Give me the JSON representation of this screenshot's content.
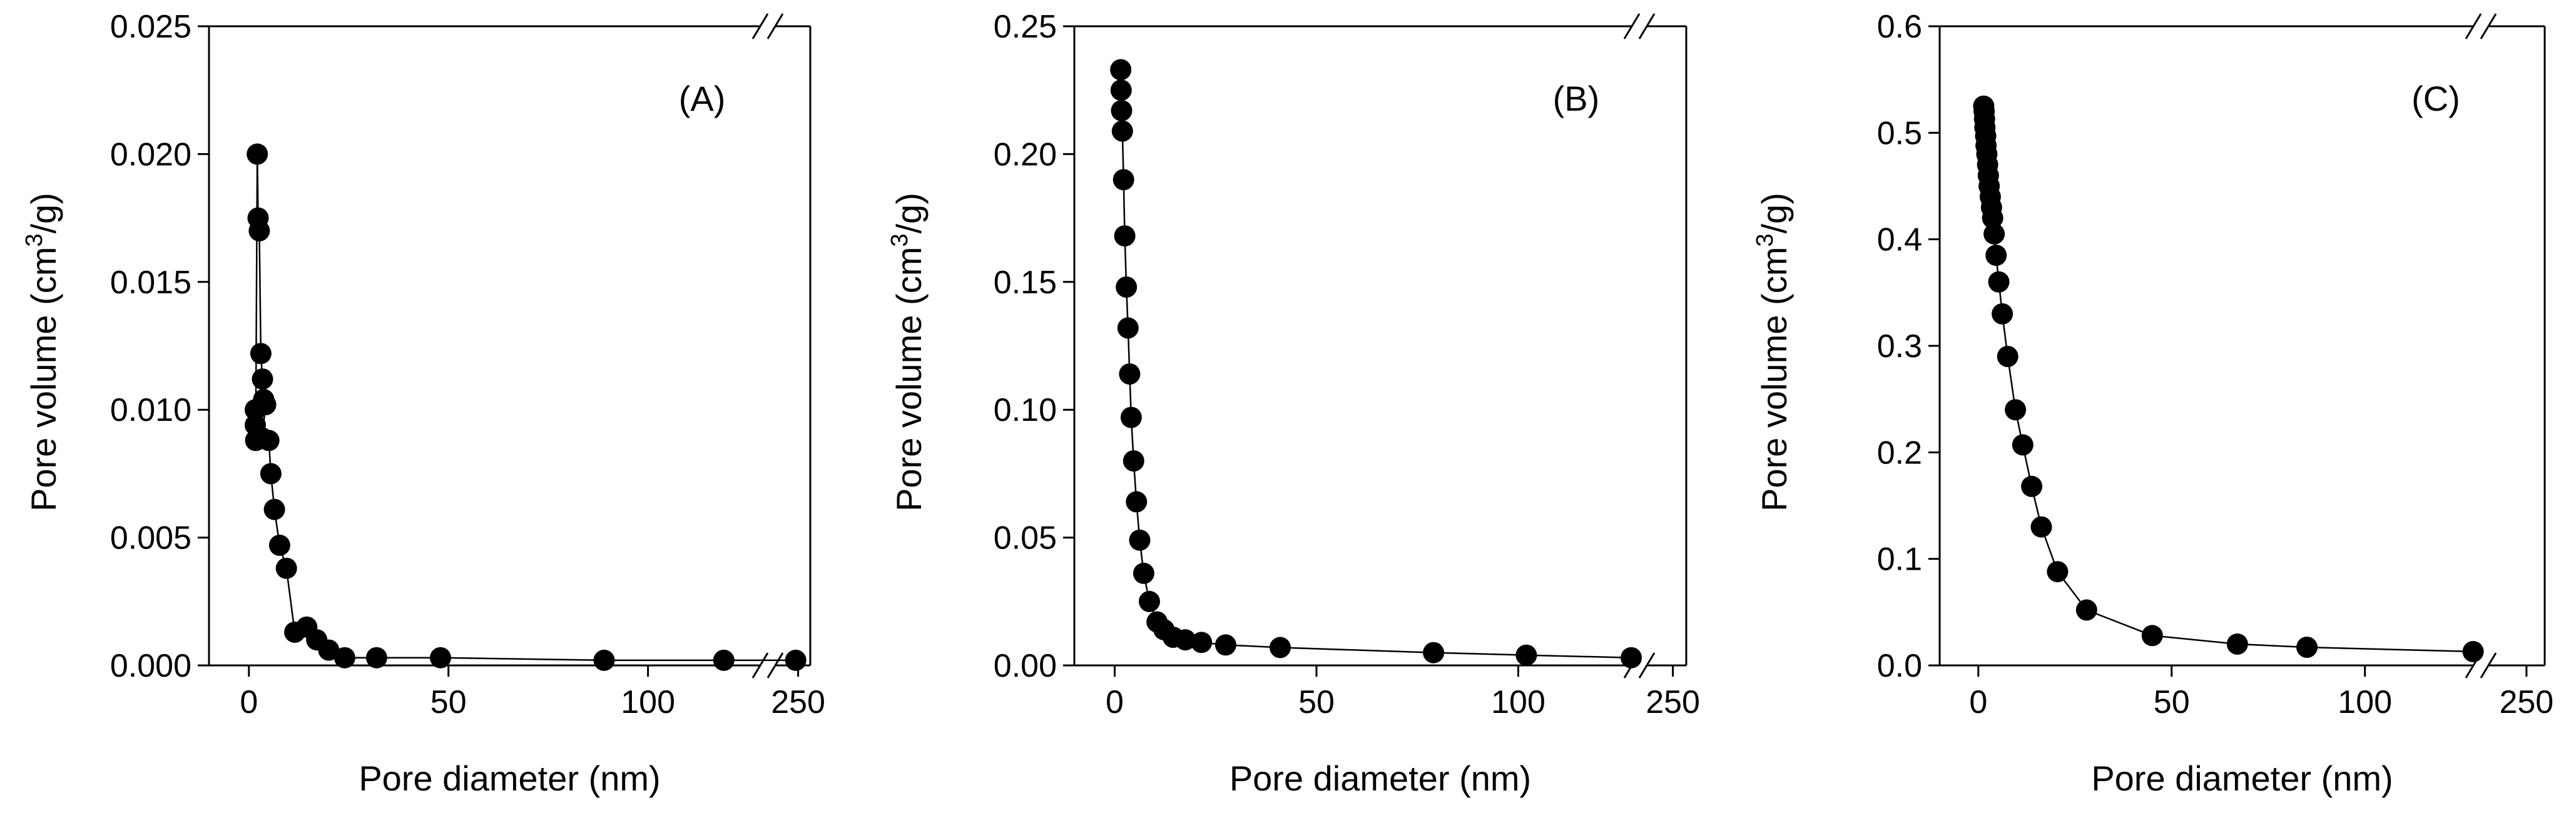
{
  "figure": {
    "colors": {
      "background": "#ffffff",
      "ink": "#000000"
    }
  },
  "chart_data": [
    {
      "type": "line",
      "id": "A",
      "panel_label": "(A)",
      "xlabel": "Pore diameter (nm)",
      "ylabel_main": "Pore volume (cm",
      "ylabel_sup": "3",
      "ylabel_tail": "/g)",
      "ylim": [
        0,
        0.025
      ],
      "yticks": [
        0,
        0.005,
        0.01,
        0.015,
        0.02,
        0.025
      ],
      "ytick_labels": [
        "0.000",
        "0.005",
        "0.010",
        "0.015",
        "0.020",
        "0.025"
      ],
      "xlim_lower": [
        -10,
        130
      ],
      "xticks_lower": [
        0,
        50,
        100
      ],
      "xtick_labels_lower": [
        "0",
        "50",
        "100"
      ],
      "xlim_upper": [
        225,
        260
      ],
      "xticks_upper": [
        250
      ],
      "xtick_labels_upper": [
        "250"
      ],
      "grid": false,
      "marker": "filled-circle",
      "series": [
        {
          "name": "(A)",
          "points": [
            [
              1.6,
              0.01
            ],
            [
              1.6,
              0.0094
            ],
            [
              1.7,
              0.0088
            ],
            [
              2.1,
              0.02
            ],
            [
              2.3,
              0.0175
            ],
            [
              2.6,
              0.017
            ],
            [
              3.0,
              0.0122
            ],
            [
              3.4,
              0.0112
            ],
            [
              3.7,
              0.0104
            ],
            [
              4.2,
              0.0102
            ],
            [
              3.3,
              0.0089
            ],
            [
              5.0,
              0.0088
            ],
            [
              5.5,
              0.0075
            ],
            [
              6.4,
              0.0061
            ],
            [
              7.7,
              0.0047
            ],
            [
              9.4,
              0.0038
            ],
            [
              11.5,
              0.0013
            ],
            [
              14.5,
              0.0015
            ],
            [
              17.0,
              0.001
            ],
            [
              20.0,
              0.0006
            ],
            [
              24.0,
              0.0003
            ],
            [
              32.0,
              0.0003
            ],
            [
              48.0,
              0.0003
            ],
            [
              89.0,
              0.0002
            ],
            [
              119.0,
              0.0002
            ],
            [
              248.0,
              0.0002
            ]
          ]
        }
      ]
    },
    {
      "type": "line",
      "id": "B",
      "panel_label": "(B)",
      "xlabel": "Pore diameter (nm)",
      "ylabel_main": "Pore volume (cm",
      "ylabel_sup": "3",
      "ylabel_tail": "/g)",
      "ylim": [
        0,
        0.25
      ],
      "yticks": [
        0,
        0.05,
        0.1,
        0.15,
        0.2,
        0.25
      ],
      "ytick_labels": [
        "0.00",
        "0.05",
        "0.10",
        "0.15",
        "0.20",
        "0.25"
      ],
      "xlim_lower": [
        -10,
        130
      ],
      "xticks_lower": [
        0,
        50,
        100
      ],
      "xtick_labels_lower": [
        "0",
        "50",
        "100"
      ],
      "xlim_upper": [
        225,
        260
      ],
      "xticks_upper": [
        250
      ],
      "xtick_labels_upper": [
        "250"
      ],
      "grid": false,
      "marker": "filled-circle",
      "series": [
        {
          "name": "(B)",
          "points": [
            [
              1.5,
              0.233
            ],
            [
              1.6,
              0.225
            ],
            [
              1.7,
              0.217
            ],
            [
              1.9,
              0.209
            ],
            [
              2.2,
              0.19
            ],
            [
              2.5,
              0.168
            ],
            [
              2.9,
              0.148
            ],
            [
              3.3,
              0.132
            ],
            [
              3.7,
              0.114
            ],
            [
              4.1,
              0.097
            ],
            [
              4.7,
              0.08
            ],
            [
              5.4,
              0.064
            ],
            [
              6.2,
              0.049
            ],
            [
              7.2,
              0.036
            ],
            [
              8.6,
              0.025
            ],
            [
              10.5,
              0.017
            ],
            [
              12.2,
              0.014
            ],
            [
              14.5,
              0.011
            ],
            [
              17.5,
              0.01
            ],
            [
              21.5,
              0.009
            ],
            [
              27.5,
              0.008
            ],
            [
              41.0,
              0.007
            ],
            [
              79.0,
              0.005
            ],
            [
              102.0,
              0.004
            ],
            [
              128.0,
              0.003
            ]
          ]
        }
      ]
    },
    {
      "type": "line",
      "id": "C",
      "panel_label": "(C)",
      "xlabel": "Pore diameter (nm)",
      "ylabel_main": "Pore volume (cm",
      "ylabel_sup": "3",
      "ylabel_tail": "/g)",
      "ylim": [
        0,
        0.6
      ],
      "yticks": [
        0,
        0.1,
        0.2,
        0.3,
        0.4,
        0.5,
        0.6
      ],
      "ytick_labels": [
        "0.0",
        "0.1",
        "0.2",
        "0.3",
        "0.4",
        "0.5",
        "0.6"
      ],
      "xlim_lower": [
        -10,
        130
      ],
      "xticks_lower": [
        0,
        50,
        100
      ],
      "xtick_labels_lower": [
        "0",
        "50",
        "100"
      ],
      "xlim_upper": [
        225,
        260
      ],
      "xticks_upper": [
        250
      ],
      "xtick_labels_upper": [
        "250"
      ],
      "grid": false,
      "marker": "filled-circle",
      "series": [
        {
          "name": "(C)",
          "points": [
            [
              1.4,
              0.525
            ],
            [
              1.5,
              0.52
            ],
            [
              1.6,
              0.513
            ],
            [
              1.7,
              0.505
            ],
            [
              1.9,
              0.497
            ],
            [
              2.0,
              0.488
            ],
            [
              2.2,
              0.48
            ],
            [
              2.4,
              0.47
            ],
            [
              2.6,
              0.46
            ],
            [
              2.8,
              0.45
            ],
            [
              3.1,
              0.44
            ],
            [
              3.4,
              0.43
            ],
            [
              3.7,
              0.42
            ],
            [
              4.1,
              0.405
            ],
            [
              4.6,
              0.385
            ],
            [
              5.3,
              0.36
            ],
            [
              6.2,
              0.33
            ],
            [
              7.6,
              0.29
            ],
            [
              9.6,
              0.24
            ],
            [
              11.5,
              0.207
            ],
            [
              13.8,
              0.168
            ],
            [
              16.3,
              0.13
            ],
            [
              20.5,
              0.088
            ],
            [
              28.0,
              0.052
            ],
            [
              45.0,
              0.028
            ],
            [
              67.0,
              0.02
            ],
            [
              85.0,
              0.017
            ],
            [
              128.0,
              0.013
            ]
          ]
        }
      ]
    }
  ]
}
